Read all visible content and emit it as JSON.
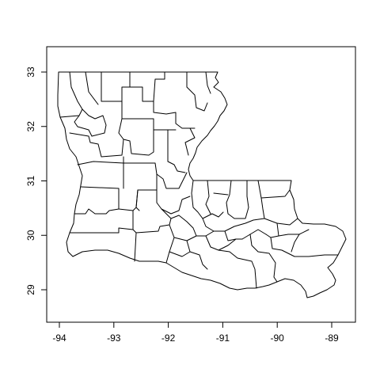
{
  "map": {
    "x_ticks": [
      "-94",
      "-93",
      "-92",
      "-91",
      "-90",
      "-89"
    ],
    "y_ticks": [
      "29",
      "30",
      "31",
      "32",
      "33"
    ],
    "x_tick_values": [
      -94,
      -93,
      -92,
      -91,
      -90,
      -89
    ],
    "y_tick_values": [
      29,
      30,
      31,
      32,
      33
    ],
    "xlim": [
      -94.4,
      -88.6
    ],
    "ylim": [
      28.4,
      33.4
    ],
    "region": "Louisiana parishes",
    "fill_color": "#ffffff",
    "line_color": "#000000"
  }
}
